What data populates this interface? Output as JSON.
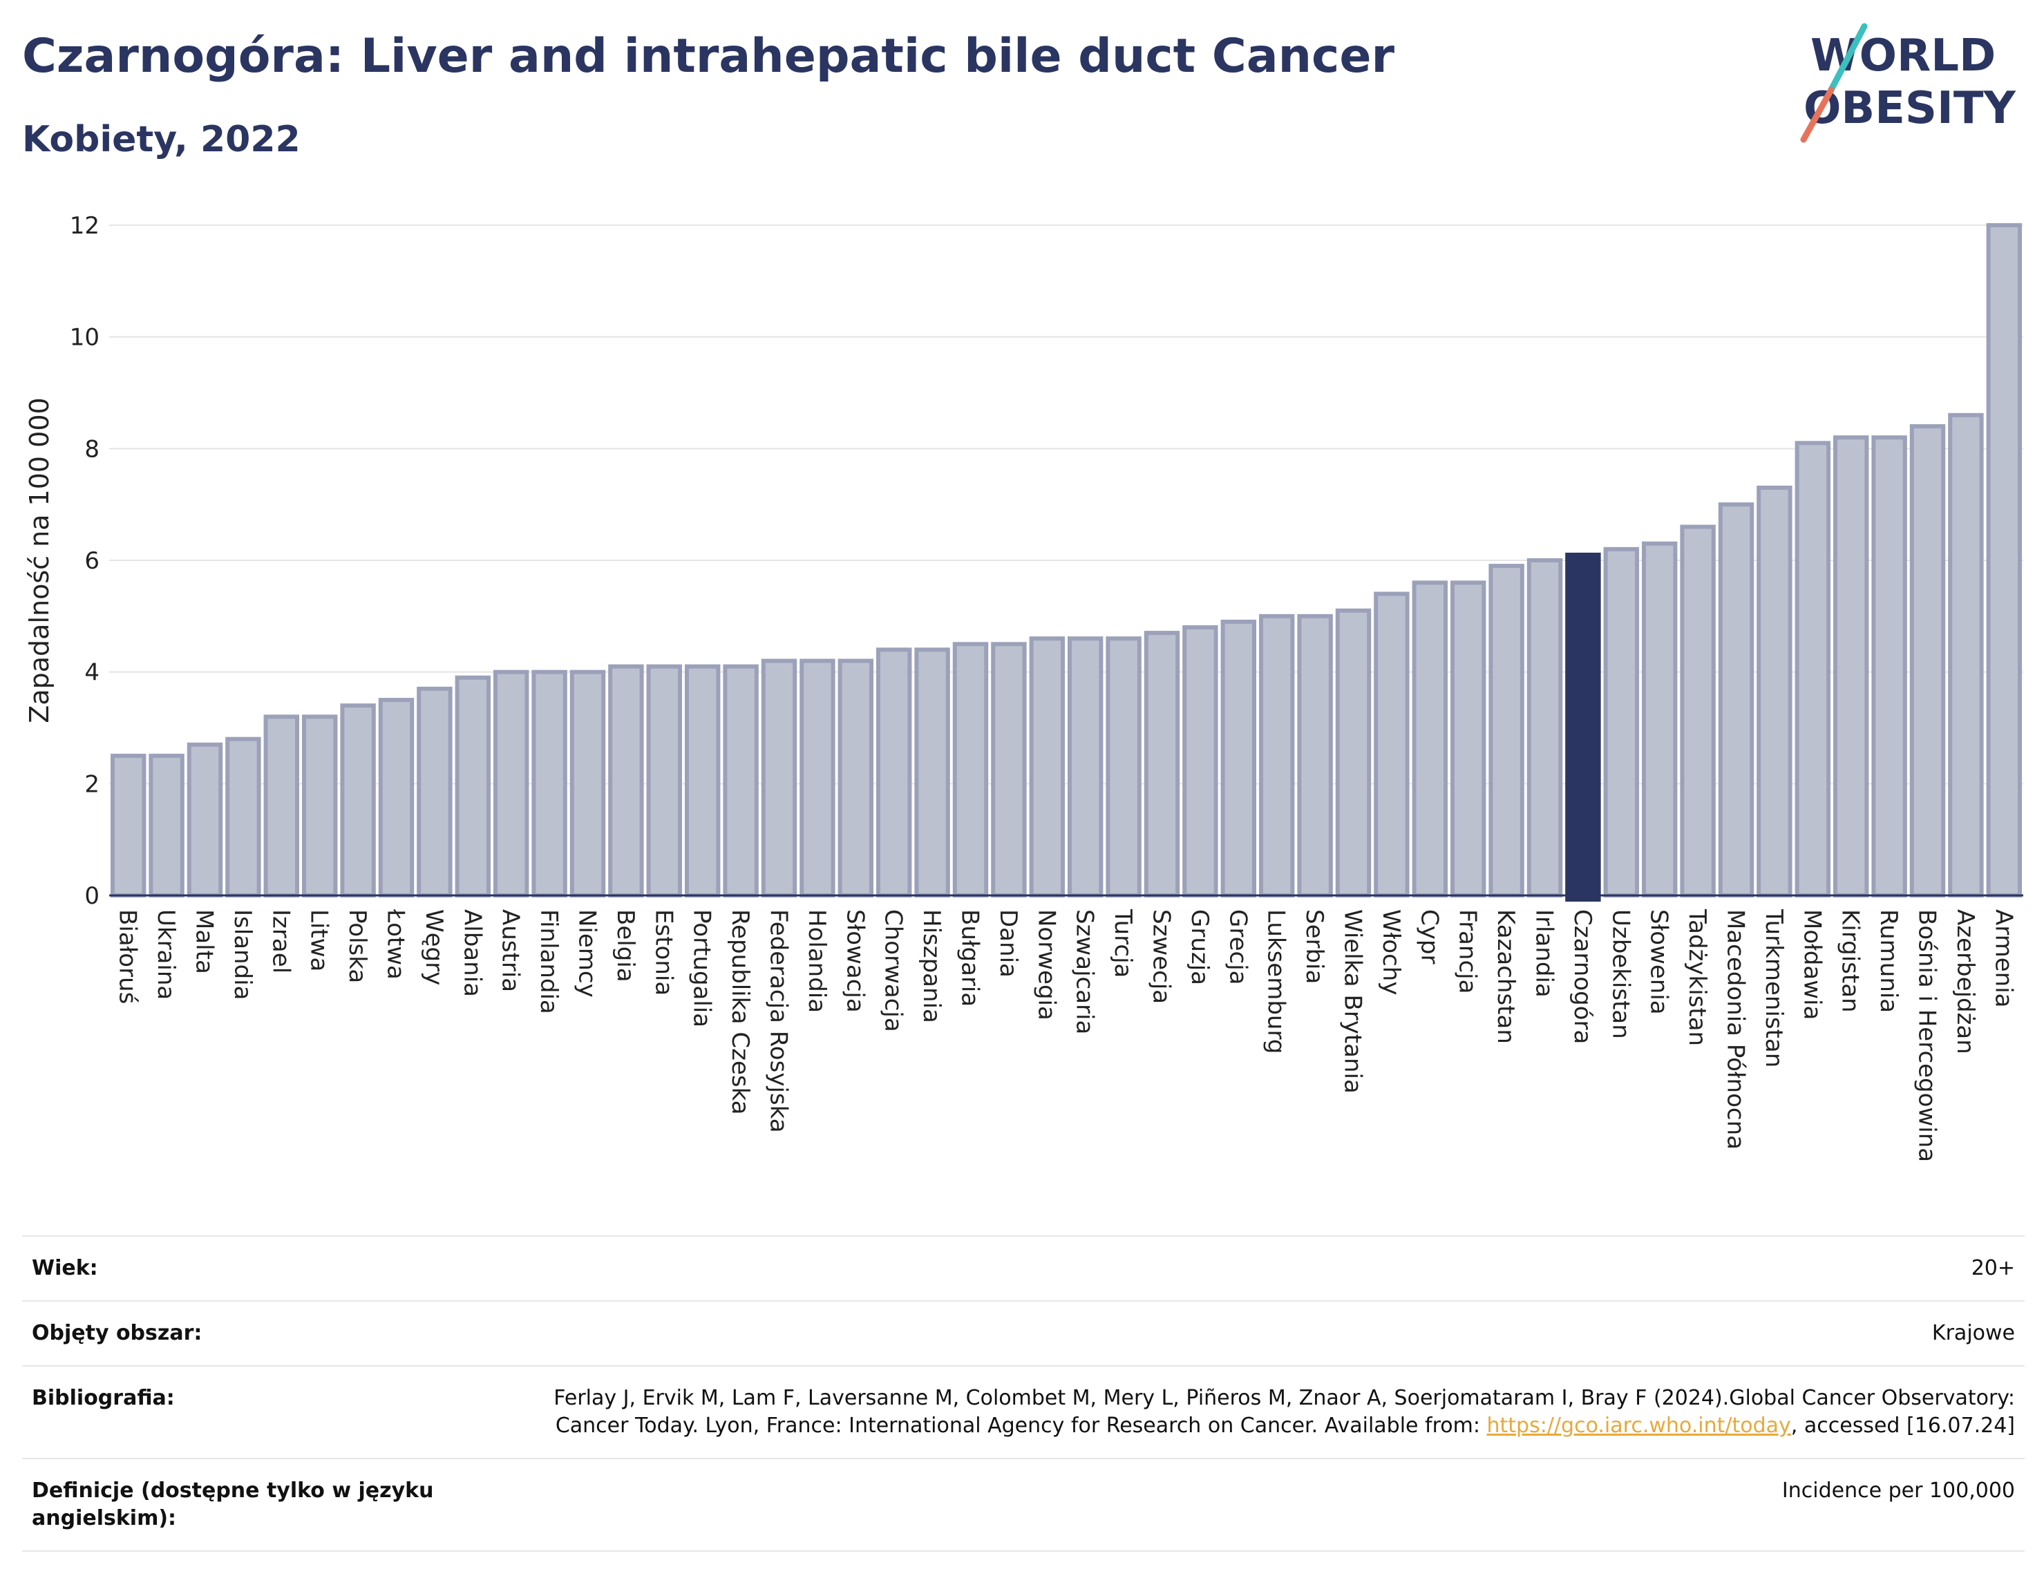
{
  "header": {
    "title": "Czarnogóra: Liver and intrahepatic bile duct Cancer",
    "subtitle": "Kobiety, 2022"
  },
  "logo": {
    "line1": "WORLD",
    "line2": "OBESITY",
    "accent_colors": [
      "#3bbfbf",
      "#e8735a"
    ]
  },
  "chart_data": {
    "type": "bar",
    "ylabel": "Zapadalność na 100 000",
    "ylim": [
      0,
      12
    ],
    "yticks": [
      0,
      2,
      4,
      6,
      8,
      10,
      12
    ],
    "grid": true,
    "highlight": "Czarnogóra",
    "colors": {
      "bar": "#bcc1d0",
      "bar_edge": "#9ba1b9",
      "highlight": "#2b3561"
    },
    "categories": [
      "Białoruś",
      "Ukraina",
      "Malta",
      "Islandia",
      "Izrael",
      "Litwa",
      "Polska",
      "Łotwa",
      "Węgry",
      "Albania",
      "Austria",
      "Finlandia",
      "Niemcy",
      "Belgia",
      "Estonia",
      "Portugalia",
      "Republika Czeska",
      "Federacja Rosyjska",
      "Holandia",
      "Słowacja",
      "Chorwacja",
      "Hiszpania",
      "Bułgaria",
      "Dania",
      "Norwegia",
      "Szwajcaria",
      "Turcja",
      "Szwecja",
      "Gruzja",
      "Grecja",
      "Luksemburg",
      "Serbia",
      "Wielka Brytania",
      "Włochy",
      "Cypr",
      "Francja",
      "Kazachstan",
      "Irlandia",
      "Czarnogóra",
      "Uzbekistan",
      "Słowenia",
      "Tadżykistan",
      "Macedonia Północna",
      "Turkmenistan",
      "Mołdawia",
      "Kirgistan",
      "Rumunia",
      "Bośnia i Hercegowina",
      "Azerbejdżan",
      "Armenia"
    ],
    "values": [
      2.5,
      2.5,
      2.7,
      2.8,
      3.2,
      3.2,
      3.4,
      3.5,
      3.7,
      3.9,
      4.0,
      4.0,
      4.0,
      4.1,
      4.1,
      4.1,
      4.1,
      4.2,
      4.2,
      4.2,
      4.4,
      4.4,
      4.5,
      4.5,
      4.6,
      4.6,
      4.6,
      4.7,
      4.8,
      4.9,
      5.0,
      5.0,
      5.1,
      5.4,
      5.6,
      5.6,
      5.9,
      6.0,
      6.1,
      6.2,
      6.3,
      6.6,
      7.0,
      7.3,
      8.1,
      8.2,
      8.2,
      8.4,
      8.6,
      12.0
    ]
  },
  "info": [
    {
      "key": "Wiek:",
      "value": "20+"
    },
    {
      "key": "Objęty obszar:",
      "value": "Krajowe"
    },
    {
      "key": "Bibliografia:",
      "value_before": "Ferlay J, Ervik M, Lam F, Laversanne M, Colombet M, Mery L, Piñeros M, Znaor A, Soerjomataram I, Bray F (2024).Global Cancer Observatory: Cancer Today. Lyon, France: International Agency for Research on Cancer. Available from: ",
      "link": "https://gco.iarc.who.int/today",
      "value_after": ", accessed [16.07.24]"
    },
    {
      "key": "Definicje (dostępne tylko w języku angielskim):",
      "value": "Incidence per 100,000"
    }
  ]
}
